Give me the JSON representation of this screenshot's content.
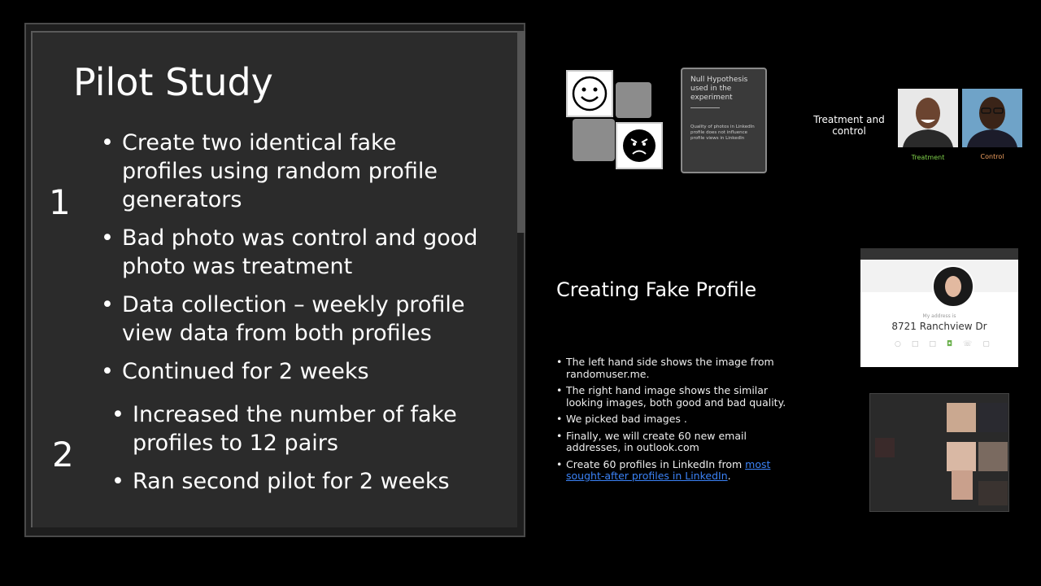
{
  "main_slide": {
    "title": "Pilot Study",
    "section1_number": "1",
    "section1_bullets": [
      "Create two identical fake profiles using random profile generators",
      "Bad photo was control and good photo was treatment",
      "Data collection – weekly profile view data from both profiles",
      "Continued for 2 weeks"
    ],
    "section2_number": "2",
    "section2_bullets": [
      "Increased the number of fake profiles to 12 pairs",
      "Ran second pilot for 2 weeks"
    ]
  },
  "null_hypothesis": {
    "heading": "Null Hypothesis used in the experiment",
    "body": "Quality of photos in LinkedIn profile does not influence profile views in LinkedIn"
  },
  "treatment_control": {
    "caption": "Treatment and control",
    "treatment_label": "Treatment",
    "control_label": "Control",
    "treatment_color": "#7fd14a",
    "control_color": "#f0a060"
  },
  "fake_profile": {
    "title": "Creating Fake Profile",
    "bullets": [
      "The left hand side shows the image from randomuser.me.",
      "The right hand image shows the similar looking images, both good and bad quality.",
      "We picked bad images .",
      "Finally, we will create 60 new email addresses, in outlook.com"
    ],
    "last_bullet_prefix": "Create 60 profiles in LinkedIn from ",
    "last_bullet_link": "most sought-after profiles in LinkedIn",
    "last_bullet_suffix": ".",
    "address_label": "My address is",
    "address_value": "8721 Ranchview Dr"
  },
  "icons": [
    "smiley-face-icon",
    "angry-face-icon"
  ]
}
